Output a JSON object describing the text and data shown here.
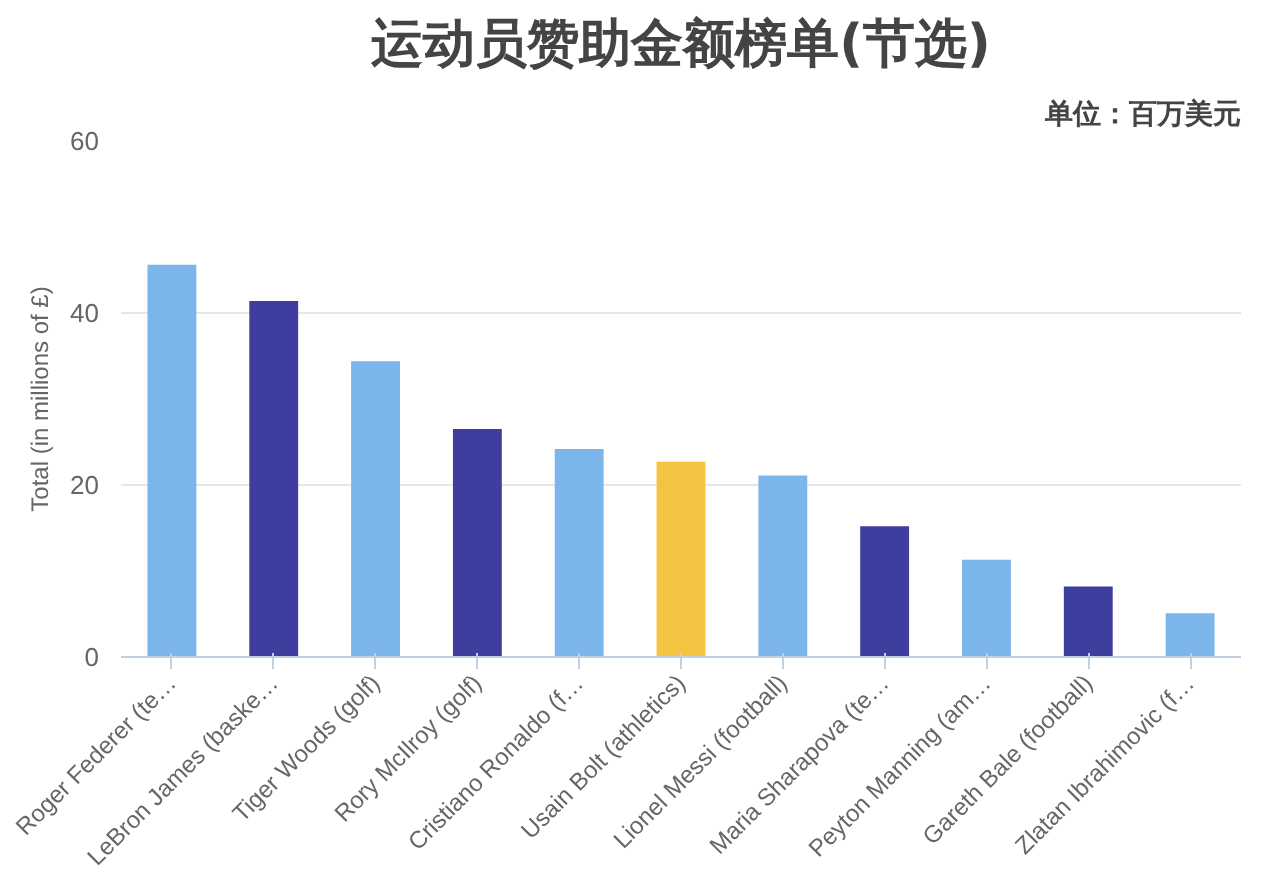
{
  "chart_data": {
    "type": "bar",
    "title": "运动员赞助金额榜单(节选)",
    "subtitle": "单位：百万美元",
    "ylabel": "Total (in millions of £)",
    "categories": [
      "Roger Federer (te…",
      "LeBron James (baske…",
      "Tiger Woods (golf)",
      "Rory McIlroy (golf)",
      "Cristiano Ronaldo (f…",
      "Usain Bolt (athletics)",
      "Lionel Messi (football)",
      "Maria Sharapova (te…",
      "Peyton Manning (am…",
      "Gareth Bale (football)",
      "Zlatan Ibrahimovic (f…"
    ],
    "values": [
      45.6,
      41.4,
      34.4,
      26.5,
      24.2,
      22.7,
      21.1,
      15.2,
      11.3,
      8.2,
      5.1
    ],
    "colors": [
      "#7cb5ec",
      "#3d3e9e",
      "#7cb5ec",
      "#3d3e9e",
      "#7cb5ec",
      "#f5c342",
      "#7cb5ec",
      "#3d3e9e",
      "#7cb5ec",
      "#3d3e9e",
      "#7cb5ec"
    ],
    "ylim": [
      0,
      60
    ],
    "yticks": [
      0,
      20,
      40,
      60
    ],
    "grid": "y"
  }
}
